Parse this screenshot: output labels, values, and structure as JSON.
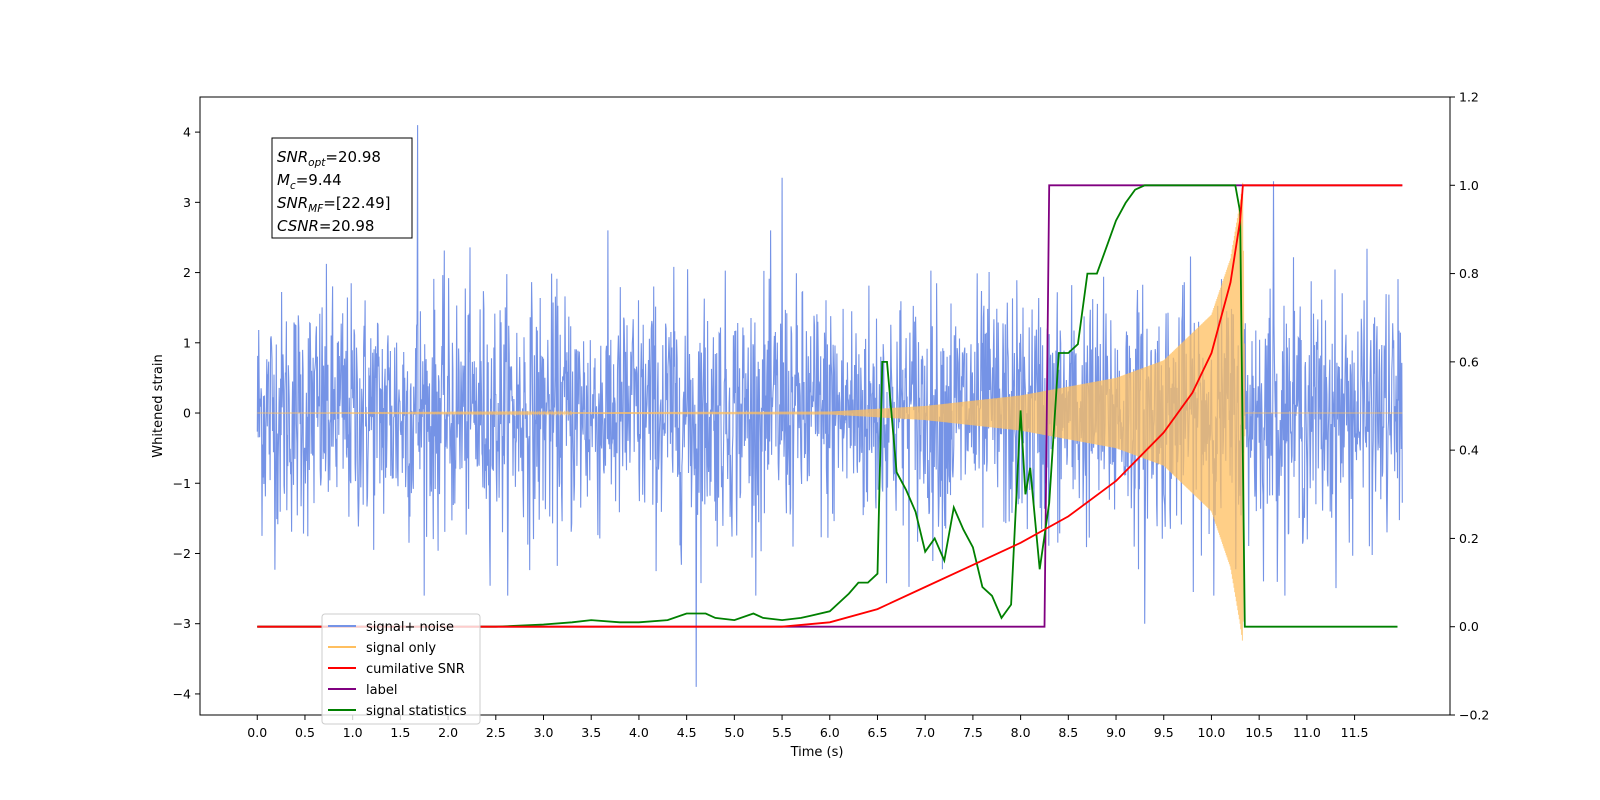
{
  "chart_data": {
    "type": "line",
    "title": "",
    "xlabel": "Time (s)",
    "ylabel": "Whitened strain",
    "y2label": "",
    "xlim": [
      -0.6,
      12.5
    ],
    "ylim": [
      -4.3,
      4.5
    ],
    "y2lim": [
      -0.2,
      1.2
    ],
    "xticks": [
      "0.0",
      "0.5",
      "1.0",
      "1.5",
      "2.0",
      "2.5",
      "3.0",
      "3.5",
      "4.0",
      "4.5",
      "5.0",
      "5.5",
      "6.0",
      "6.5",
      "7.0",
      "7.5",
      "8.0",
      "8.5",
      "9.0",
      "9.5",
      "10.0",
      "10.5",
      "11.0",
      "11.5"
    ],
    "yticks": [
      "−4",
      "−3",
      "−2",
      "−1",
      "0",
      "1",
      "2",
      "3",
      "4"
    ],
    "y2ticks": [
      "−0.2",
      "0.0",
      "0.2",
      "0.4",
      "0.6",
      "0.8",
      "1.0",
      "1.2"
    ],
    "grid": false,
    "legend_position": "lower-left",
    "annotation": {
      "lines": [
        {
          "sym": "SNR",
          "sub": "opt",
          "val": "=20.98"
        },
        {
          "sym": "M",
          "sub": "c",
          "val": "=9.44"
        },
        {
          "sym": "SNR",
          "sub": "MF",
          "val": "=[22.49]"
        },
        {
          "sym": "CSNR",
          "sub": "",
          "val": "=20.98"
        }
      ]
    },
    "legend": [
      {
        "label": "signal+ noise",
        "color": "#7593e6"
      },
      {
        "label": "signal only",
        "color": "#ffbf5f"
      },
      {
        "label": "cumilative SNR",
        "color": "#ff0000"
      },
      {
        "label": "label",
        "color": "#800080"
      },
      {
        "label": "signal statistics",
        "color": "#008000"
      }
    ],
    "series": [
      {
        "name": "signal+ noise",
        "axis": "left",
        "color": "#7593e6",
        "description": "whitened strain noise, amplitude roughly ±2.5 with spikes to ±4, spanning 0–12 s",
        "x_range": [
          0.0,
          12.0
        ],
        "noise_amplitude": 1.9,
        "peaks": [
          [
            1.68,
            4.1
          ],
          [
            4.6,
            -3.9
          ],
          [
            5.5,
            3.35
          ],
          [
            10.65,
            3.3
          ],
          [
            9.3,
            -3.0
          ]
        ]
      },
      {
        "name": "signal only",
        "axis": "left",
        "color": "#ffbf5f",
        "description": "chirp envelope, zero until ~6 s, growing to ~3 at merger near 10.33 s",
        "envelope": [
          [
            0.0,
            0.0
          ],
          [
            6.0,
            0.02
          ],
          [
            7.0,
            0.1
          ],
          [
            8.0,
            0.25
          ],
          [
            9.0,
            0.5
          ],
          [
            9.5,
            0.75
          ],
          [
            10.0,
            1.4
          ],
          [
            10.2,
            2.2
          ],
          [
            10.3,
            3.0
          ],
          [
            10.33,
            3.3
          ],
          [
            10.35,
            0.0
          ],
          [
            12.0,
            0.0
          ]
        ]
      },
      {
        "name": "cumilative SNR",
        "axis": "right",
        "color": "#ff0000",
        "x": [
          0.0,
          5.5,
          6.0,
          6.5,
          7.0,
          7.5,
          8.0,
          8.5,
          9.0,
          9.5,
          9.8,
          10.0,
          10.2,
          10.3,
          10.33,
          12.0
        ],
        "y": [
          0.0,
          0.0,
          0.01,
          0.04,
          0.09,
          0.14,
          0.19,
          0.25,
          0.33,
          0.44,
          0.53,
          0.62,
          0.78,
          0.92,
          1.0,
          1.0
        ]
      },
      {
        "name": "label",
        "axis": "right",
        "color": "#800080",
        "x": [
          0.0,
          8.25,
          8.3,
          10.33,
          10.34,
          12.0
        ],
        "y": [
          0.0,
          0.0,
          1.0,
          1.0,
          1.0,
          1.0
        ]
      },
      {
        "name": "signal statistics",
        "axis": "right",
        "color": "#008000",
        "x": [
          0.0,
          2.0,
          2.5,
          3.0,
          3.3,
          3.5,
          3.8,
          4.0,
          4.3,
          4.5,
          4.7,
          4.8,
          5.0,
          5.2,
          5.3,
          5.5,
          5.7,
          5.8,
          6.0,
          6.2,
          6.3,
          6.4,
          6.5,
          6.55,
          6.6,
          6.7,
          6.8,
          6.9,
          7.0,
          7.1,
          7.2,
          7.3,
          7.4,
          7.5,
          7.6,
          7.7,
          7.8,
          7.9,
          8.0,
          8.05,
          8.1,
          8.2,
          8.3,
          8.4,
          8.5,
          8.6,
          8.7,
          8.8,
          8.9,
          9.0,
          9.1,
          9.2,
          9.3,
          9.5,
          10.0,
          10.25,
          10.3,
          10.35,
          11.0,
          11.95
        ],
        "y": [
          0.0,
          0.0,
          0.0,
          0.005,
          0.01,
          0.015,
          0.01,
          0.01,
          0.015,
          0.03,
          0.03,
          0.02,
          0.015,
          0.03,
          0.02,
          0.015,
          0.02,
          0.025,
          0.035,
          0.075,
          0.1,
          0.1,
          0.12,
          0.6,
          0.6,
          0.35,
          0.31,
          0.26,
          0.17,
          0.2,
          0.15,
          0.27,
          0.22,
          0.18,
          0.09,
          0.07,
          0.02,
          0.05,
          0.49,
          0.3,
          0.36,
          0.13,
          0.28,
          0.62,
          0.62,
          0.64,
          0.8,
          0.8,
          0.86,
          0.92,
          0.96,
          0.99,
          1.0,
          1.0,
          1.0,
          1.0,
          0.94,
          0.0,
          0.0,
          0.0
        ]
      }
    ]
  }
}
